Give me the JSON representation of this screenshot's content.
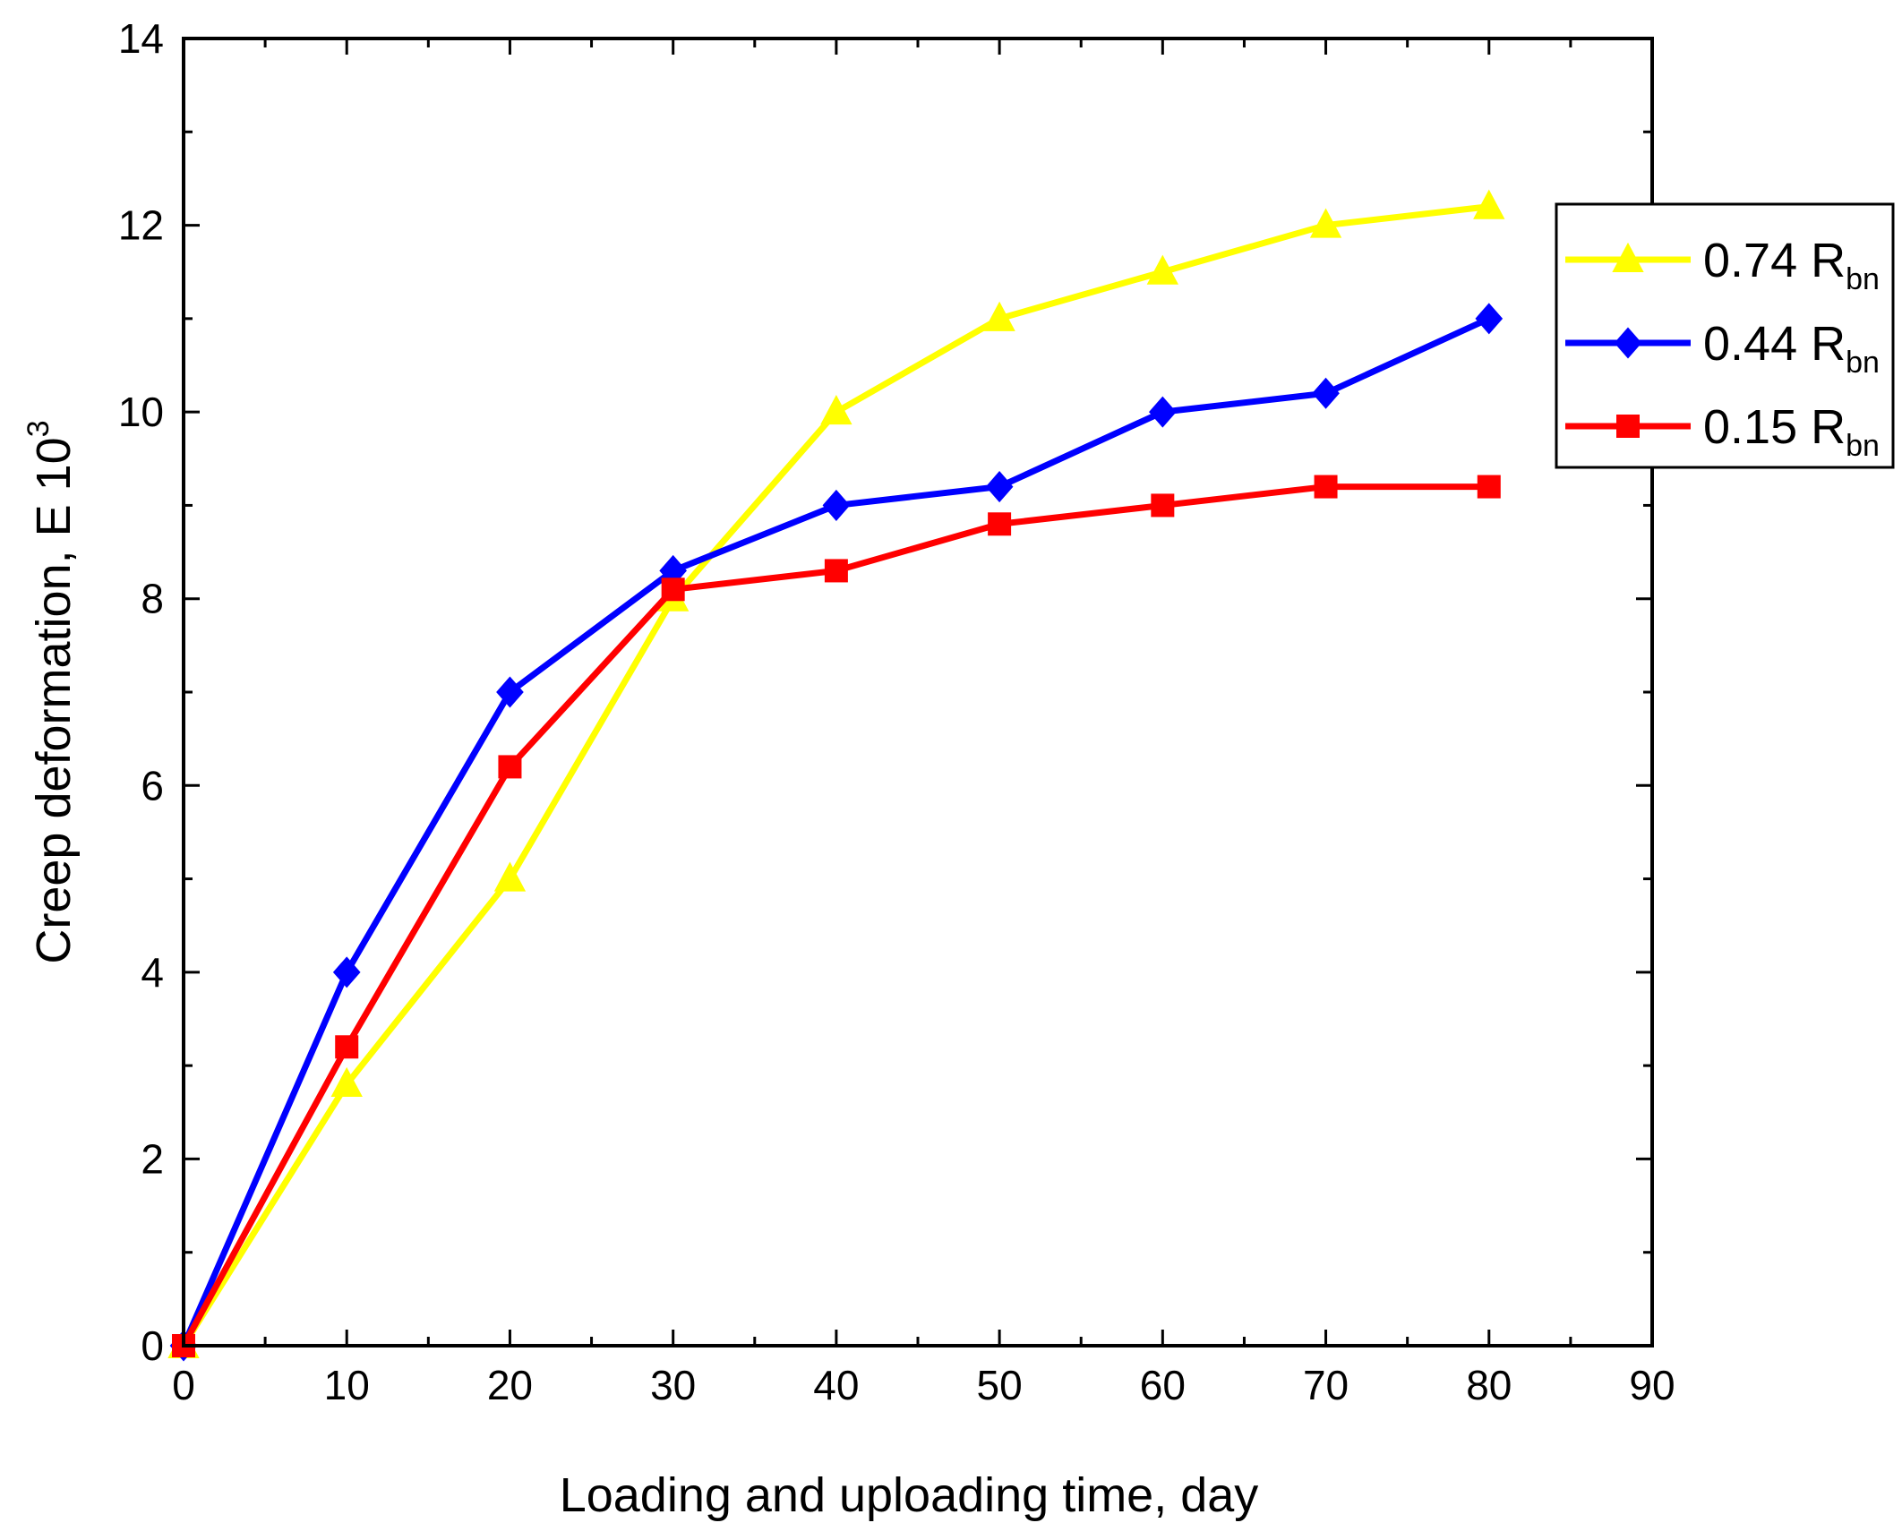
{
  "chart_data": {
    "type": "line",
    "title": "",
    "xlabel": "Loading and uploading time, day",
    "ylabel": {
      "main": "Creep deformation, E 10",
      "sup": "3"
    },
    "xlim": [
      0,
      90
    ],
    "ylim": [
      0,
      14
    ],
    "x_ticks": [
      0,
      10,
      20,
      30,
      40,
      50,
      60,
      70,
      80,
      90
    ],
    "y_ticks": [
      0,
      2,
      4,
      6,
      8,
      10,
      12,
      14
    ],
    "x_tick_labels": [
      "0",
      "10",
      "20",
      "30",
      "40",
      "50",
      "60",
      "70",
      "80",
      "90"
    ],
    "y_tick_labels": [
      "0",
      "2",
      "4",
      "6",
      "8",
      "10",
      "12",
      "14"
    ],
    "grid": false,
    "legend_position": "right-top",
    "x": [
      0,
      10,
      20,
      30,
      40,
      50,
      60,
      70,
      80
    ],
    "series": [
      {
        "name": "0.74 R",
        "sub": "bn",
        "marker": "triangle",
        "color": "#ffff00",
        "values": [
          0,
          2.8,
          5.0,
          8.0,
          10.0,
          11.0,
          11.5,
          12.0,
          12.2
        ]
      },
      {
        "name": "0.44 R",
        "sub": "bn",
        "marker": "diamond",
        "color": "#0000ff",
        "values": [
          0,
          4.0,
          7.0,
          8.3,
          9.0,
          9.2,
          10.0,
          10.2,
          11.0
        ]
      },
      {
        "name": "0.15 R",
        "sub": "bn",
        "marker": "square",
        "color": "#ff0000",
        "values": [
          0,
          3.2,
          6.2,
          8.1,
          8.3,
          8.8,
          9.0,
          9.2,
          9.2
        ]
      }
    ]
  }
}
